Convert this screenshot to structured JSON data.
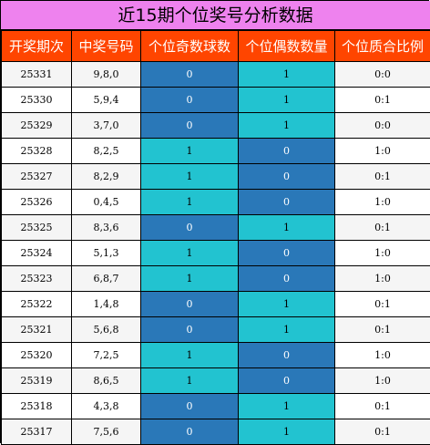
{
  "title": "近15期个位奖号分析数据",
  "columns": [
    "开奖期次",
    "中奖号码",
    "个位奇数球数",
    "个位偶数数量",
    "个位质合比例"
  ],
  "colors": {
    "title_bg": "#ee82ee",
    "header_bg": "#ff4500",
    "zero_cell": "#2a78b8",
    "one_cell": "#22c3d0"
  },
  "rows": [
    {
      "period": "25331",
      "numbers": "9,8,0",
      "odd": "0",
      "even": "1",
      "ratio": "0:0"
    },
    {
      "period": "25330",
      "numbers": "5,9,4",
      "odd": "0",
      "even": "1",
      "ratio": "0:1"
    },
    {
      "period": "25329",
      "numbers": "3,7,0",
      "odd": "0",
      "even": "1",
      "ratio": "0:0"
    },
    {
      "period": "25328",
      "numbers": "8,2,5",
      "odd": "1",
      "even": "0",
      "ratio": "1:0"
    },
    {
      "period": "25327",
      "numbers": "8,2,9",
      "odd": "1",
      "even": "0",
      "ratio": "0:1"
    },
    {
      "period": "25326",
      "numbers": "0,4,5",
      "odd": "1",
      "even": "0",
      "ratio": "1:0"
    },
    {
      "period": "25325",
      "numbers": "8,3,6",
      "odd": "0",
      "even": "1",
      "ratio": "0:1"
    },
    {
      "period": "25324",
      "numbers": "5,1,3",
      "odd": "1",
      "even": "0",
      "ratio": "1:0"
    },
    {
      "period": "25323",
      "numbers": "6,8,7",
      "odd": "1",
      "even": "0",
      "ratio": "1:0"
    },
    {
      "period": "25322",
      "numbers": "1,4,8",
      "odd": "0",
      "even": "1",
      "ratio": "0:1"
    },
    {
      "period": "25321",
      "numbers": "5,6,8",
      "odd": "0",
      "even": "1",
      "ratio": "0:1"
    },
    {
      "period": "25320",
      "numbers": "7,2,5",
      "odd": "1",
      "even": "0",
      "ratio": "1:0"
    },
    {
      "period": "25319",
      "numbers": "8,6,5",
      "odd": "1",
      "even": "0",
      "ratio": "1:0"
    },
    {
      "period": "25318",
      "numbers": "4,3,8",
      "odd": "0",
      "even": "1",
      "ratio": "0:1"
    },
    {
      "period": "25317",
      "numbers": "7,5,6",
      "odd": "0",
      "even": "1",
      "ratio": "0:1"
    }
  ]
}
